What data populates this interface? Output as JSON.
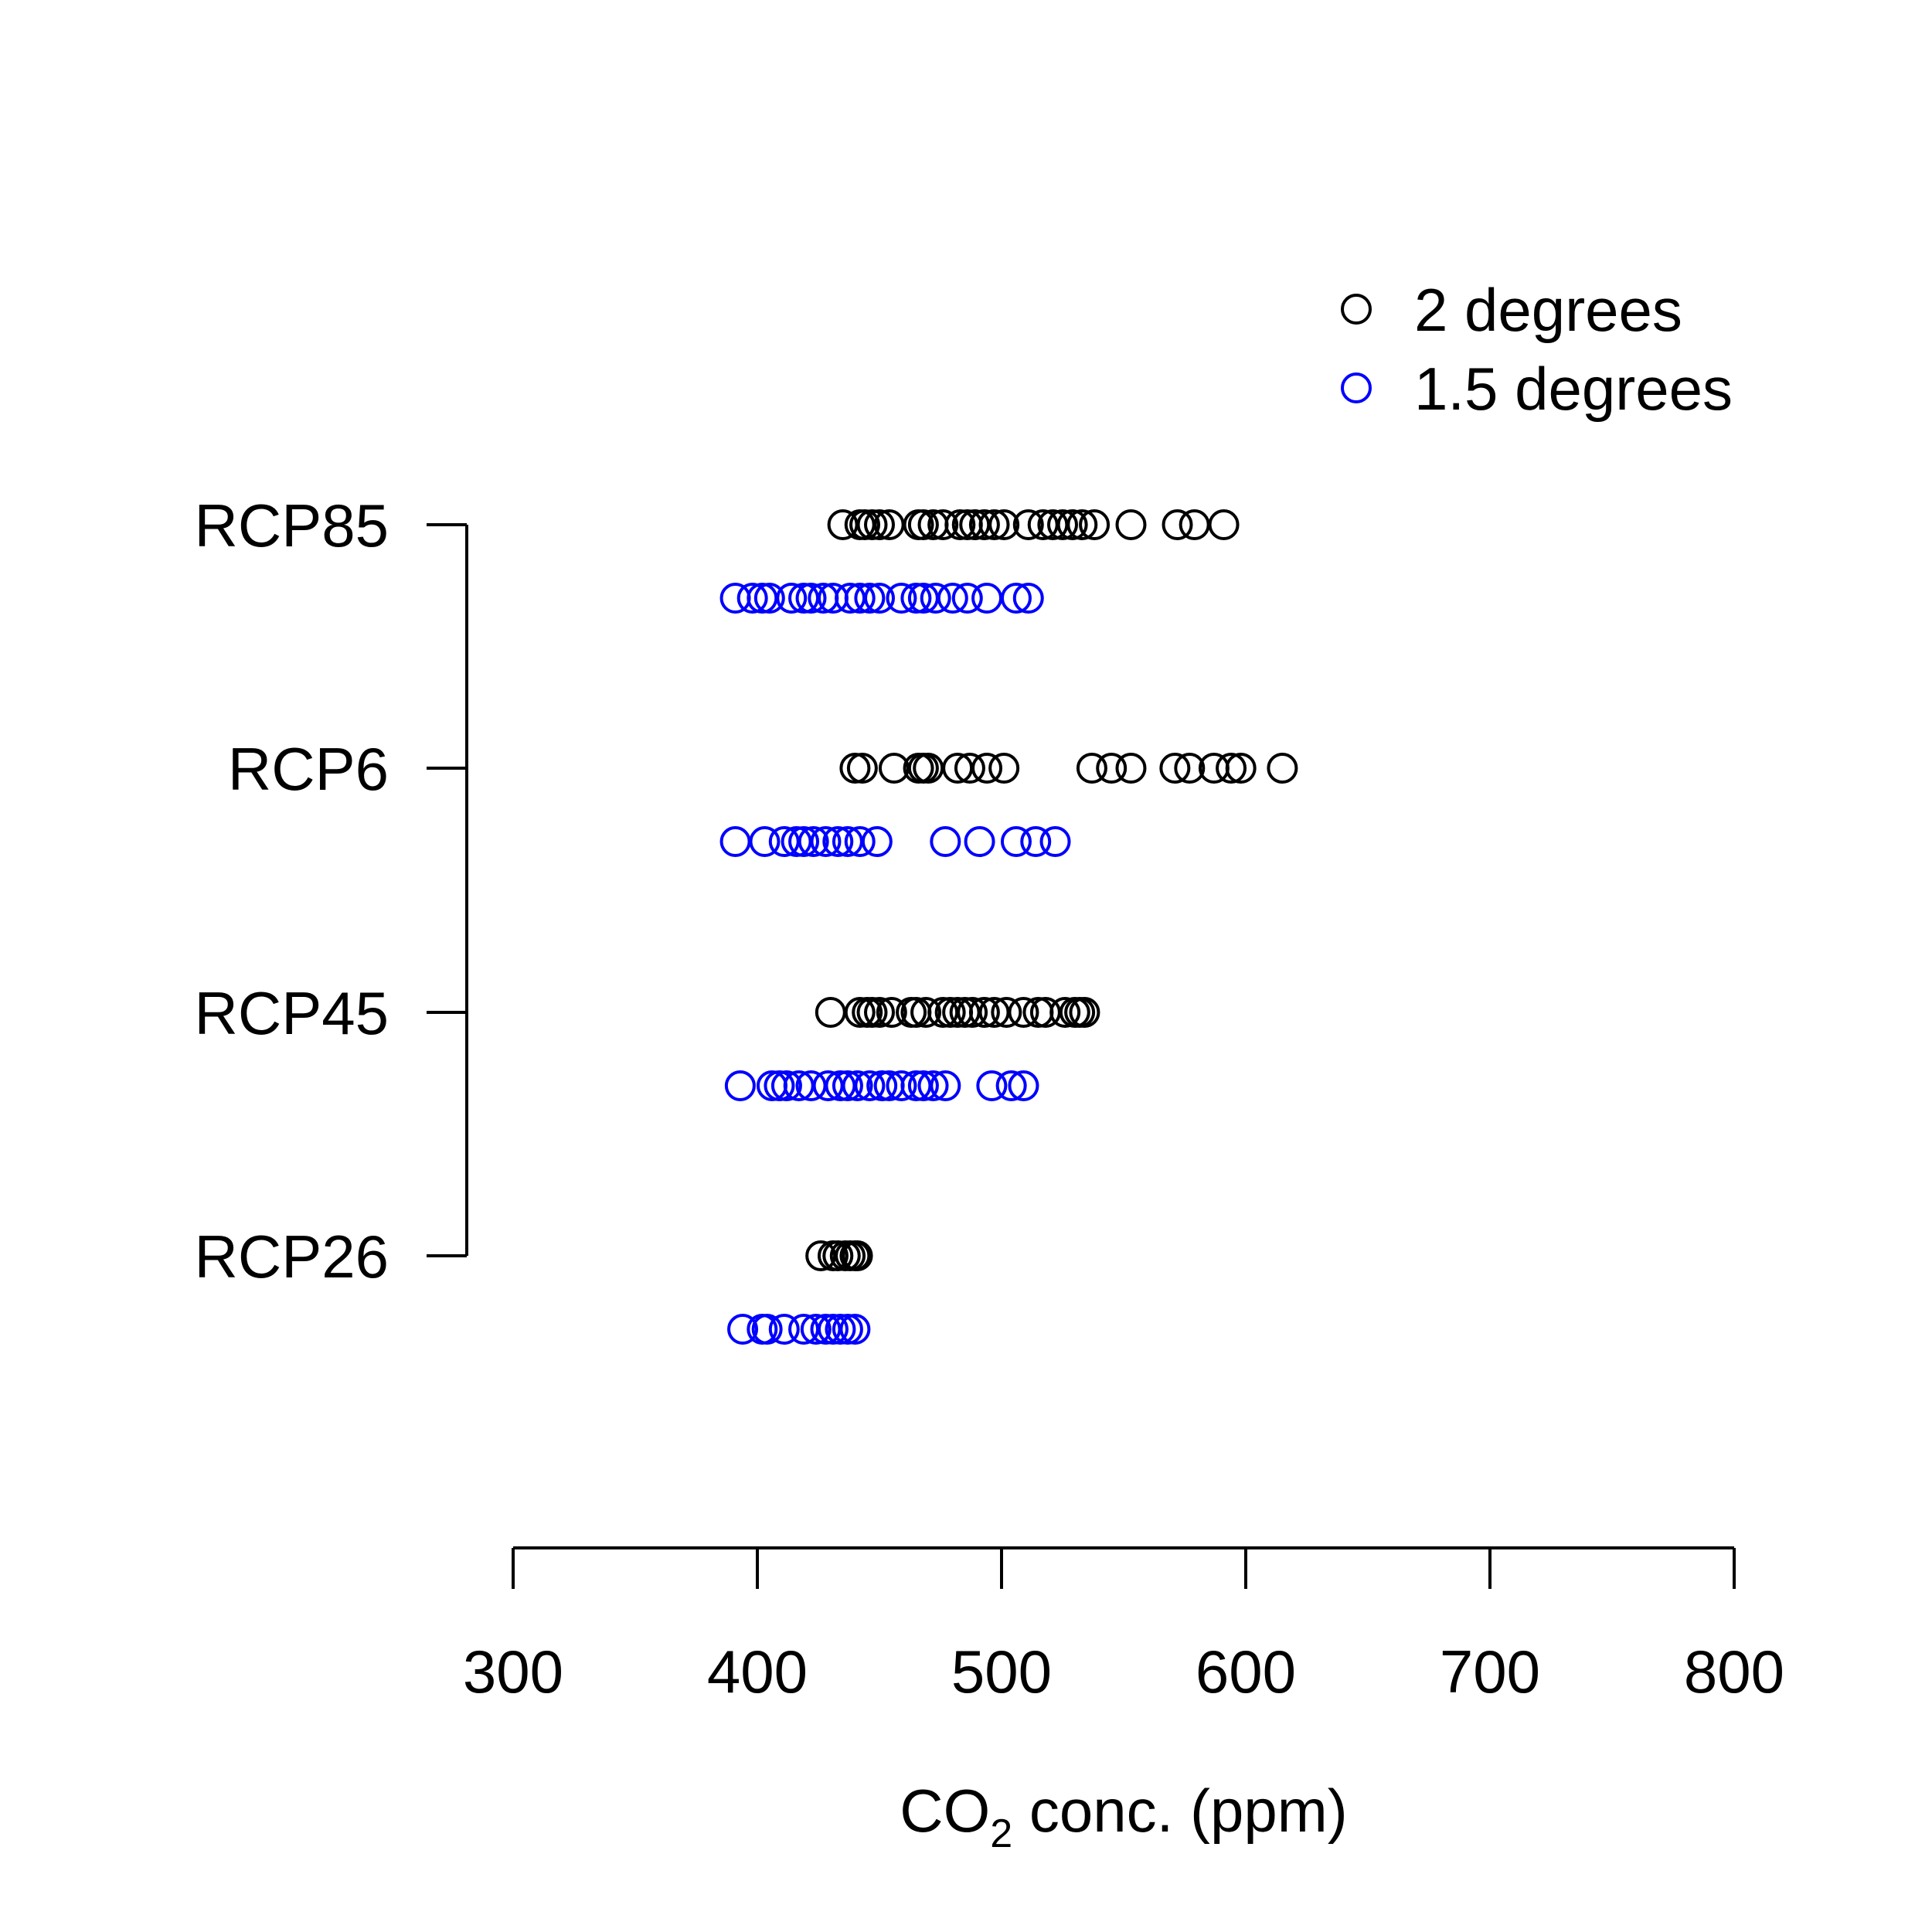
{
  "chart_data": {
    "type": "scatter",
    "xlabel": {
      "main": "CO",
      "sub": "2",
      "rest": " conc. (ppm)"
    },
    "xlim": [
      300,
      800
    ],
    "xticks": [
      "300",
      "400",
      "500",
      "600",
      "700",
      "800"
    ],
    "categories": [
      "RCP26",
      "RCP45",
      "RCP6",
      "RCP85"
    ],
    "legend": {
      "position": "top-right",
      "entries": [
        {
          "label": "2 degrees",
          "color": "#000000"
        },
        {
          "label": "1.5 degrees",
          "color": "#0000ff"
        }
      ]
    },
    "series": [
      {
        "name": "2 degrees",
        "color": "#000000",
        "groups": {
          "RCP85": [
            435,
            442,
            444,
            447,
            450,
            454,
            466,
            468,
            472,
            476,
            483,
            486,
            489,
            493,
            497,
            501,
            511,
            517,
            521,
            525,
            529,
            533,
            538,
            553,
            572,
            579,
            591
          ],
          "RCP6": [
            440,
            443,
            456,
            466,
            468,
            470,
            482,
            487,
            494,
            501,
            537,
            545,
            553,
            571,
            577,
            587,
            594,
            598,
            615
          ],
          "RCP45": [
            430,
            442,
            445,
            447,
            450,
            455,
            463,
            465,
            469,
            476,
            479,
            482,
            485,
            488,
            493,
            497,
            502,
            509,
            515,
            518,
            526,
            530,
            532,
            534
          ],
          "RCP26": [
            426,
            431,
            433,
            436,
            438,
            440,
            441
          ]
        }
      },
      {
        "name": "1.5 degrees",
        "color": "#0000ff",
        "groups": {
          "RCP85": [
            391,
            398,
            402,
            405,
            414,
            419,
            422,
            427,
            431,
            438,
            442,
            446,
            450,
            459,
            465,
            468,
            473,
            480,
            486,
            494,
            506,
            511
          ],
          "RCP6": [
            391,
            403,
            411,
            416,
            419,
            423,
            428,
            433,
            437,
            442,
            449,
            477,
            491,
            506,
            514,
            522
          ],
          "RCP45": [
            393,
            406,
            409,
            412,
            417,
            422,
            429,
            434,
            437,
            441,
            446,
            451,
            454,
            459,
            465,
            468,
            472,
            477,
            496,
            504,
            509
          ],
          "RCP26": [
            394,
            402,
            404,
            411,
            419,
            424,
            428,
            431,
            434,
            437,
            440
          ]
        }
      }
    ]
  }
}
